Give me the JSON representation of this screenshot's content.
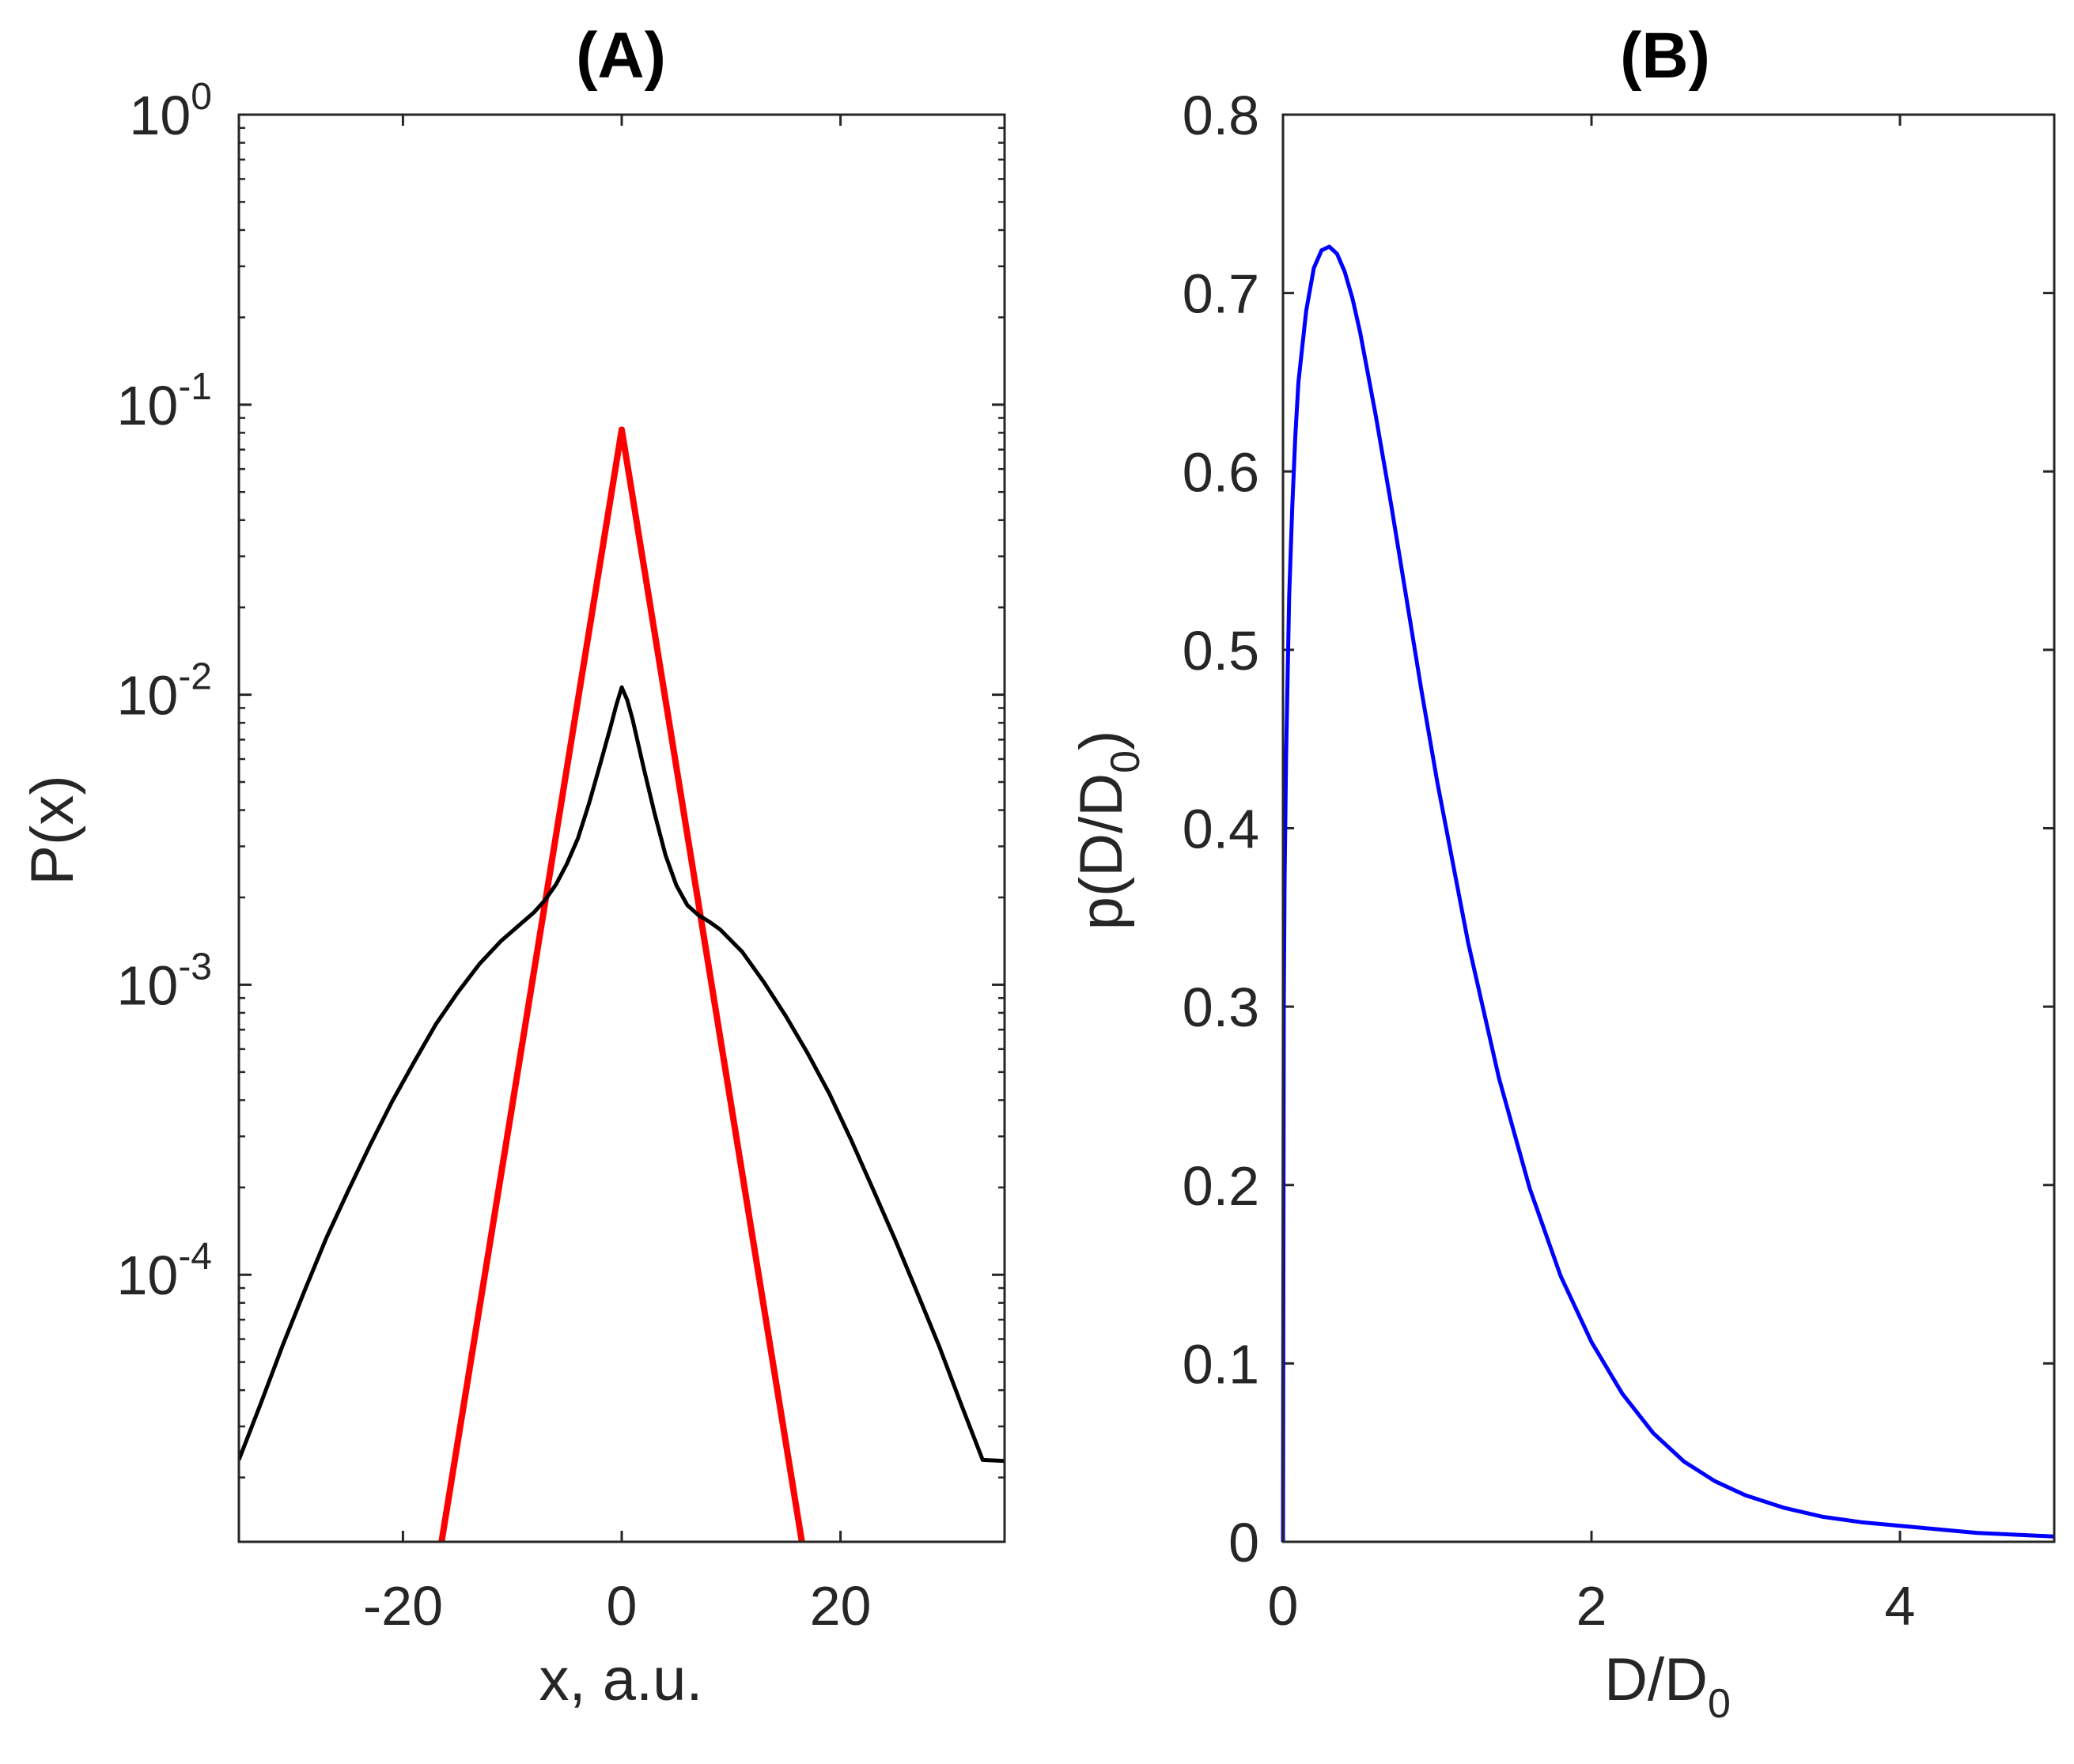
{
  "chart_data": [
    {
      "type": "line",
      "title": "(A)",
      "xlabel": "x, a.u.",
      "ylabel": "P(x)",
      "yscale": "log",
      "xlim": [
        -35,
        35
      ],
      "ylim": [
        1.2e-05,
        1
      ],
      "xticks": [
        -20,
        0,
        20
      ],
      "xtick_labels": [
        "-20",
        "0",
        "20"
      ],
      "yticks": [
        {
          "base": "10",
          "exp": "0",
          "value": 1
        },
        {
          "base": "10",
          "exp": "-1",
          "value": 0.1
        },
        {
          "base": "10",
          "exp": "-2",
          "value": 0.01
        },
        {
          "base": "10",
          "exp": "-3",
          "value": 0.001
        },
        {
          "base": "10",
          "exp": "-4",
          "value": 0.0001
        }
      ],
      "series": [
        {
          "name": "red",
          "color": "#ff0000",
          "x": [
            -16.5,
            0,
            16.5
          ],
          "y": [
            1.18e-05,
            0.082,
            1.18e-05
          ]
        },
        {
          "name": "black",
          "color": "#000000",
          "x": [
            -35,
            -33,
            -31,
            -29,
            -27,
            -25,
            -23,
            -21,
            -19,
            -17,
            -15,
            -13,
            -11,
            -9,
            -8,
            -7,
            -6,
            -5,
            -4,
            -3,
            -2,
            -1,
            -0.5,
            0,
            0.5,
            1,
            2,
            3,
            4,
            5,
            6,
            7,
            8,
            9,
            11,
            13,
            15,
            17,
            19,
            21,
            23,
            25,
            27,
            29,
            31,
            33,
            35
          ],
          "y": [
            2.3e-05,
            3.6e-05,
            5.7e-05,
            8.8e-05,
            0.000134,
            0.000195,
            0.00028,
            0.000395,
            0.00054,
            0.00073,
            0.00094,
            0.00118,
            0.00142,
            0.00165,
            0.00178,
            0.00196,
            0.00222,
            0.00262,
            0.0032,
            0.0042,
            0.0057,
            0.0078,
            0.0092,
            0.0106,
            0.0096,
            0.0082,
            0.0056,
            0.0039,
            0.0028,
            0.0022,
            0.00188,
            0.00174,
            0.00165,
            0.00155,
            0.0013,
            0.00102,
            0.00078,
            0.00058,
            0.00042,
            0.00029,
            0.000196,
            0.000132,
            8.7e-05,
            5.7e-05,
            3.6e-05,
            2.3e-05,
            2.28e-05
          ]
        }
      ]
    },
    {
      "type": "line",
      "title": "(B)",
      "xlabel_main": "D/D",
      "xlabel_sub": "0",
      "ylabel_main": "p(D/D",
      "ylabel_sub": "0",
      "ylabel_close": ")",
      "xlim": [
        0,
        5
      ],
      "ylim": [
        0,
        0.8
      ],
      "xticks": [
        0,
        2,
        4
      ],
      "xtick_labels": [
        "0",
        "2",
        "4"
      ],
      "yticks": [
        0,
        0.1,
        0.2,
        0.3,
        0.4,
        0.5,
        0.6,
        0.7,
        0.8
      ],
      "ytick_labels": [
        "0",
        "0.1",
        "0.2",
        "0.3",
        "0.4",
        "0.5",
        "0.6",
        "0.7",
        "0.8"
      ],
      "series": [
        {
          "name": "blue",
          "color": "#0000ff",
          "x": [
            0,
            0.005,
            0.01,
            0.02,
            0.04,
            0.06,
            0.08,
            0.1,
            0.15,
            0.2,
            0.25,
            0.3,
            0.35,
            0.4,
            0.45,
            0.5,
            0.6,
            0.7,
            0.8,
            0.9,
            1.0,
            1.2,
            1.4,
            1.6,
            1.8,
            2.0,
            2.2,
            2.4,
            2.6,
            2.8,
            3.0,
            3.25,
            3.5,
            3.75,
            4.0,
            4.25,
            4.5,
            4.75,
            5.0
          ],
          "y": [
            0,
            0.3,
            0.37,
            0.44,
            0.53,
            0.58,
            0.62,
            0.65,
            0.69,
            0.714,
            0.724,
            0.726,
            0.722,
            0.712,
            0.697,
            0.678,
            0.632,
            0.582,
            0.529,
            0.476,
            0.426,
            0.336,
            0.26,
            0.198,
            0.149,
            0.112,
            0.083,
            0.061,
            0.045,
            0.034,
            0.026,
            0.019,
            0.014,
            0.011,
            0.009,
            0.007,
            0.005,
            0.004,
            0.003
          ]
        }
      ]
    }
  ]
}
